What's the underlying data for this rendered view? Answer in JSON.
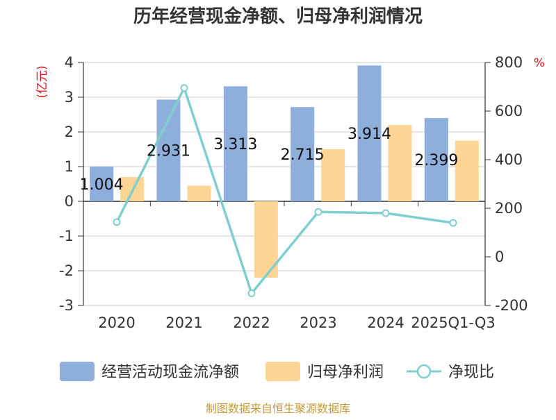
{
  "title": "历年经营现金净额、归母净利润情况",
  "source": "制图数据来自恒生聚源数据库",
  "chart_data": {
    "type": "bar",
    "categories": [
      "2020",
      "2021",
      "2022",
      "2023",
      "2024",
      "2025Q1-Q3"
    ],
    "left_axis": {
      "unit": "(亿元)",
      "range": [
        -3,
        4
      ],
      "ticks": [
        4,
        3,
        2,
        1,
        0,
        -1,
        -2,
        -3
      ]
    },
    "right_axis": {
      "unit": "%",
      "range": [
        -200,
        800
      ],
      "ticks": [
        800,
        600,
        400,
        200,
        0,
        -200
      ]
    },
    "grid": true,
    "legend_position": "bottom",
    "series": [
      {
        "name": "经营活动现金流净额",
        "type": "bar",
        "axis": "left",
        "color": "#8eaedc",
        "values": [
          1.004,
          2.931,
          3.313,
          2.715,
          3.914,
          2.399
        ],
        "labels": [
          "1.004",
          "2.931",
          "3.313",
          "2.715",
          "3.914",
          "2.399"
        ]
      },
      {
        "name": "归母净利润",
        "type": "bar",
        "axis": "left",
        "color": "#fdd594",
        "values": [
          0.7,
          0.45,
          -2.2,
          1.5,
          2.2,
          1.75
        ]
      },
      {
        "name": "净现比",
        "type": "line",
        "axis": "right",
        "color": "#7fcfd1",
        "values": [
          143,
          695,
          -150,
          185,
          180,
          140
        ]
      }
    ]
  }
}
